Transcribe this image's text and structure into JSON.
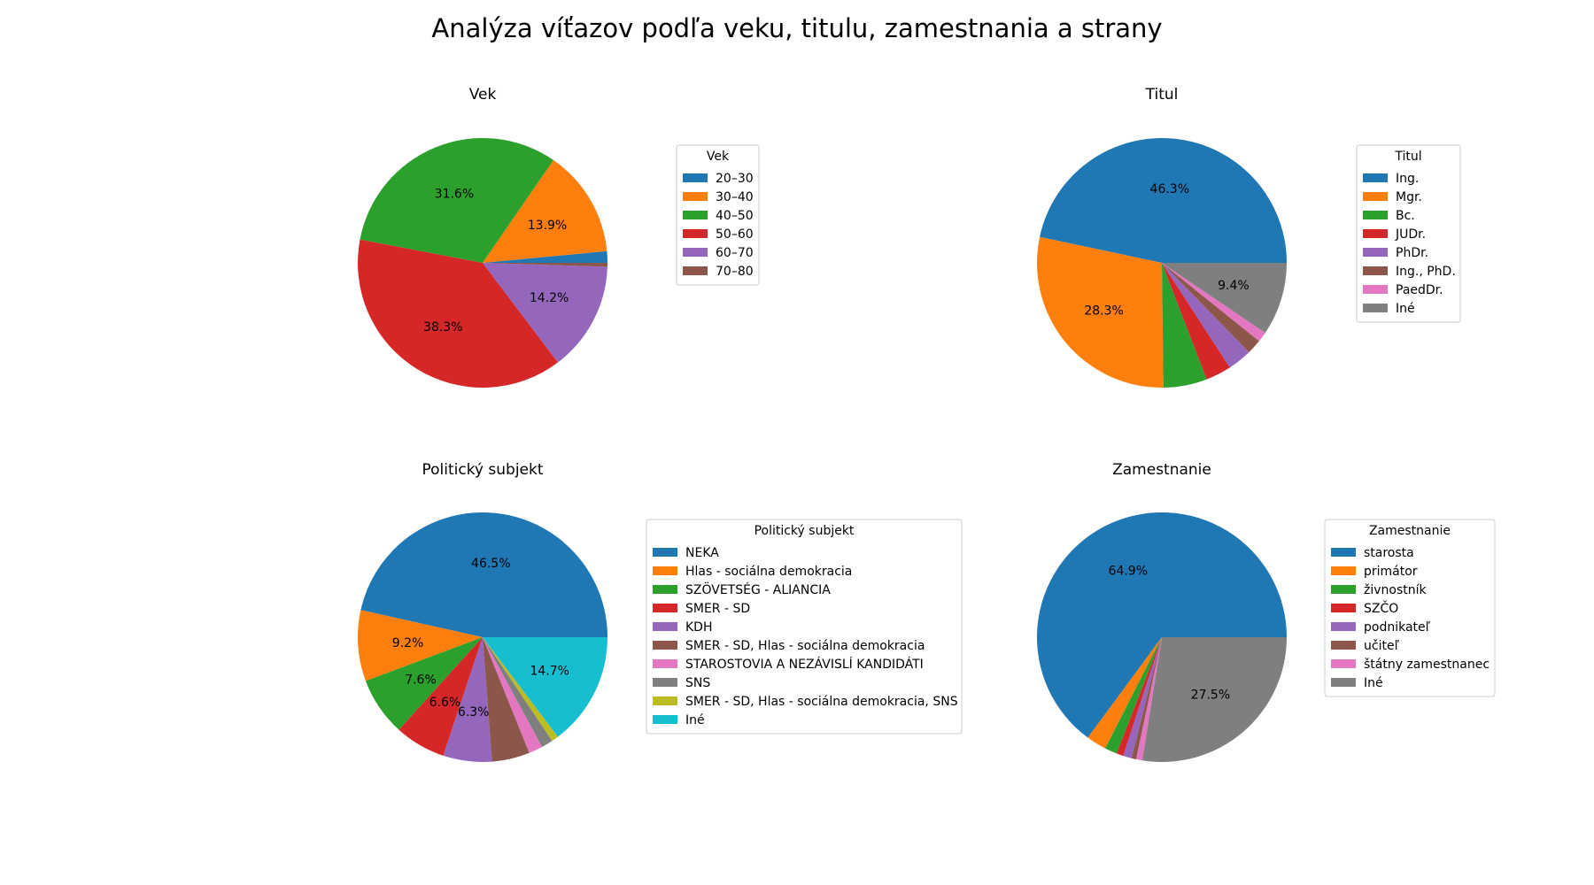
{
  "figure": {
    "title": "Analýza víťazov podľa veku, titulu, zamestnania a strany"
  },
  "chart_data": [
    {
      "type": "pie",
      "title": "Vek",
      "legend_title": "Vek",
      "legend_position": "right",
      "categories": [
        "20–30",
        "30–40",
        "40–50",
        "50–60",
        "60–70",
        "70–80"
      ],
      "values": [
        1.5,
        13.9,
        31.6,
        38.3,
        14.2,
        0.5
      ],
      "labels": [
        "",
        "13.9%",
        "31.6%",
        "38.3%",
        "14.2%",
        ""
      ],
      "colors": [
        "#1f77b4",
        "#ff7f0e",
        "#2ca02c",
        "#d62728",
        "#9467bd",
        "#8c564b"
      ]
    },
    {
      "type": "pie",
      "title": "Titul",
      "legend_title": "Titul",
      "legend_position": "right",
      "categories": [
        "Ing.",
        "Mgr.",
        "Bc.",
        "JUDr.",
        "PhDr.",
        "Ing., PhD.",
        "PaedDr.",
        "Iné"
      ],
      "values": [
        46.3,
        28.3,
        5.6,
        3.3,
        3.1,
        1.9,
        1.3,
        9.4
      ],
      "labels": [
        "46.3%",
        "28.3%",
        "",
        "",
        "",
        "",
        "",
        "9.4%"
      ],
      "colors": [
        "#1f77b4",
        "#ff7f0e",
        "#2ca02c",
        "#d62728",
        "#9467bd",
        "#8c564b",
        "#e377c2",
        "#7f7f7f"
      ]
    },
    {
      "type": "pie",
      "title": "Politický subjekt",
      "legend_title": "Politický subjekt",
      "legend_position": "right",
      "categories": [
        "NEKA",
        "Hlas - sociálna demokracia",
        "SZÖVETSÉG - ALIANCIA",
        "SMER - SD",
        "KDH",
        "SMER - SD, Hlas - sociálna demokracia",
        "STAROSTOVIA A NEZÁVISLÍ KANDIDÁTI",
        "SNS",
        "SMER - SD, Hlas - sociálna demokracia, SNS",
        "Iné"
      ],
      "values": [
        46.5,
        9.2,
        7.6,
        6.6,
        6.3,
        4.9,
        1.8,
        1.5,
        0.9,
        14.7
      ],
      "labels": [
        "46.5%",
        "9.2%",
        "7.6%",
        "6.6%",
        "6.3%",
        "",
        "",
        "",
        "",
        "14.7%"
      ],
      "colors": [
        "#1f77b4",
        "#ff7f0e",
        "#2ca02c",
        "#d62728",
        "#9467bd",
        "#8c564b",
        "#e377c2",
        "#7f7f7f",
        "#bcbd22",
        "#17becf"
      ]
    },
    {
      "type": "pie",
      "title": "Zamestnanie",
      "legend_title": "Zamestnanie",
      "legend_position": "right",
      "categories": [
        "starosta",
        "primátor",
        "živnostník",
        "SZČO",
        "podnikateľ",
        "učiteľ",
        "štátny zamestnanec",
        "Iné"
      ],
      "values": [
        64.9,
        2.6,
        1.6,
        0.9,
        1.1,
        0.6,
        0.8,
        27.5
      ],
      "labels": [
        "64.9%",
        "",
        "",
        "",
        "",
        "",
        "",
        "27.5%"
      ],
      "colors": [
        "#1f77b4",
        "#ff7f0e",
        "#2ca02c",
        "#d62728",
        "#9467bd",
        "#8c564b",
        "#e377c2",
        "#7f7f7f"
      ]
    }
  ]
}
